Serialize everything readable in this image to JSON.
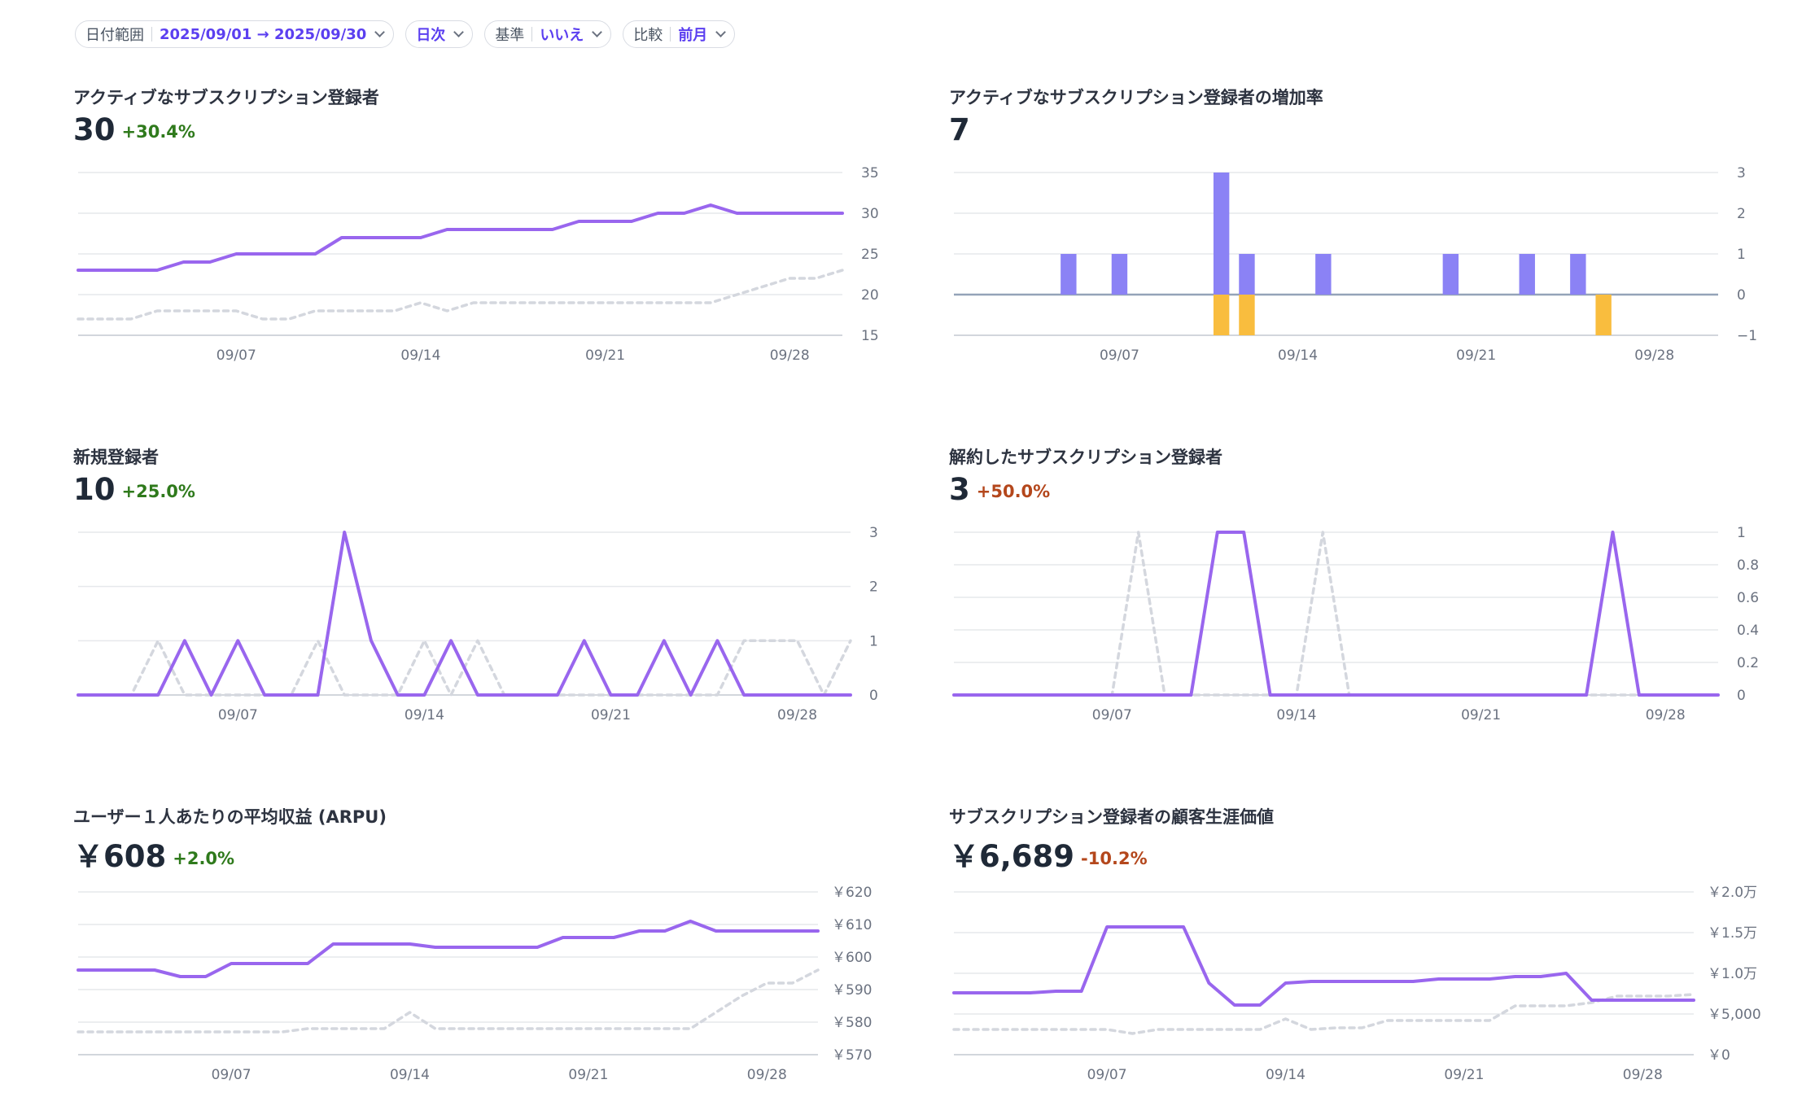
{
  "filters": [
    {
      "label": "日付範囲",
      "value": "2025/09/01 → 2025/09/30"
    },
    {
      "label": "",
      "value": "日次"
    },
    {
      "label": "基準",
      "value": "いいえ"
    },
    {
      "label": "比較",
      "value": "前月"
    }
  ],
  "colors": {
    "primary": "#9966ee",
    "comparison": "#d4d7de",
    "bar_positive": "#8b82f5",
    "bar_negative": "#f9bd3e",
    "increase": "#2f7a1c",
    "decrease": "#b4471c"
  },
  "panels": [
    {
      "title": "アクティブなサブスクリプション登録者",
      "value": "30",
      "change": "+30.4%",
      "change_dir": "pos"
    },
    {
      "title": "アクティブなサブスクリプション登録者の増加率",
      "value": "7",
      "change": "",
      "change_dir": ""
    },
    {
      "title": "新規登録者",
      "value": "10",
      "change": "+25.0%",
      "change_dir": "pos"
    },
    {
      "title": "解約したサブスクリプション登録者",
      "value": "3",
      "change": "+50.0%",
      "change_dir": "neg"
    },
    {
      "title": "ユーザー１人あたりの平均収益 (ARPU)",
      "value": "￥608",
      "change": "+2.0%",
      "change_dir": "pos"
    },
    {
      "title": "サブスクリプション登録者の顧客生涯価値",
      "value": "￥6,689",
      "change": "-10.2%",
      "change_dir": "neg"
    }
  ],
  "chart_data": [
    {
      "type": "line",
      "x": [
        "09/01",
        "09/02",
        "09/03",
        "09/04",
        "09/05",
        "09/06",
        "09/07",
        "09/08",
        "09/09",
        "09/10",
        "09/11",
        "09/12",
        "09/13",
        "09/14",
        "09/15",
        "09/16",
        "09/17",
        "09/18",
        "09/19",
        "09/20",
        "09/21",
        "09/22",
        "09/23",
        "09/24",
        "09/25",
        "09/26",
        "09/27",
        "09/28",
        "09/29",
        "09/30"
      ],
      "x_ticks": [
        "09/07",
        "09/14",
        "09/21",
        "09/28"
      ],
      "ylim": [
        15,
        35
      ],
      "y_ticks": [
        15,
        20,
        25,
        30,
        35
      ],
      "y_tick_labels": [
        "15",
        "20",
        "25",
        "30",
        "35"
      ],
      "series": [
        {
          "role": "current",
          "values": [
            23,
            23,
            23,
            23,
            24,
            24,
            25,
            25,
            25,
            25,
            27,
            27,
            27,
            27,
            28,
            28,
            28,
            28,
            28,
            29,
            29,
            29,
            30,
            30,
            31,
            30,
            30,
            30,
            30,
            30
          ]
        },
        {
          "role": "comparison",
          "values": [
            17,
            17,
            17,
            18,
            18,
            18,
            18,
            17,
            17,
            18,
            18,
            18,
            18,
            19,
            18,
            19,
            19,
            19,
            19,
            19,
            19,
            19,
            19,
            19,
            19,
            20,
            21,
            22,
            22,
            23
          ]
        }
      ]
    },
    {
      "type": "bar",
      "x": [
        "09/01",
        "09/02",
        "09/03",
        "09/04",
        "09/05",
        "09/06",
        "09/07",
        "09/08",
        "09/09",
        "09/10",
        "09/11",
        "09/12",
        "09/13",
        "09/14",
        "09/15",
        "09/16",
        "09/17",
        "09/18",
        "09/19",
        "09/20",
        "09/21",
        "09/22",
        "09/23",
        "09/24",
        "09/25",
        "09/26",
        "09/27",
        "09/28",
        "09/29",
        "09/30"
      ],
      "x_ticks": [
        "09/07",
        "09/14",
        "09/21",
        "09/28"
      ],
      "ylim": [
        -1,
        3
      ],
      "y_ticks": [
        -1,
        0,
        1,
        2,
        3
      ],
      "y_tick_labels": [
        "−1",
        "0",
        "1",
        "2",
        "3"
      ],
      "series": [
        {
          "role": "positive",
          "values": [
            0,
            0,
            0,
            0,
            1,
            0,
            1,
            0,
            0,
            0,
            3,
            1,
            0,
            0,
            1,
            0,
            0,
            0,
            0,
            1,
            0,
            0,
            1,
            0,
            1,
            0,
            0,
            0,
            0,
            0
          ]
        },
        {
          "role": "negative",
          "values": [
            0,
            0,
            0,
            0,
            0,
            0,
            0,
            0,
            0,
            0,
            -1,
            -1,
            0,
            0,
            0,
            0,
            0,
            0,
            0,
            0,
            0,
            0,
            0,
            0,
            0,
            -1,
            0,
            0,
            0,
            0
          ]
        }
      ]
    },
    {
      "type": "line",
      "x": [
        "09/01",
        "09/02",
        "09/03",
        "09/04",
        "09/05",
        "09/06",
        "09/07",
        "09/08",
        "09/09",
        "09/10",
        "09/11",
        "09/12",
        "09/13",
        "09/14",
        "09/15",
        "09/16",
        "09/17",
        "09/18",
        "09/19",
        "09/20",
        "09/21",
        "09/22",
        "09/23",
        "09/24",
        "09/25",
        "09/26",
        "09/27",
        "09/28",
        "09/29",
        "09/30"
      ],
      "x_ticks": [
        "09/07",
        "09/14",
        "09/21",
        "09/28"
      ],
      "ylim": [
        0,
        3
      ],
      "y_ticks": [
        0,
        1,
        2,
        3
      ],
      "y_tick_labels": [
        "0",
        "1",
        "2",
        "3"
      ],
      "series": [
        {
          "role": "current",
          "values": [
            0,
            0,
            0,
            0,
            1,
            0,
            1,
            0,
            0,
            0,
            3,
            1,
            0,
            0,
            1,
            0,
            0,
            0,
            0,
            1,
            0,
            0,
            1,
            0,
            1,
            0,
            0,
            0,
            0,
            0
          ]
        },
        {
          "role": "comparison",
          "values": [
            0,
            0,
            0,
            1,
            0,
            0,
            0,
            0,
            0,
            1,
            0,
            0,
            0,
            1,
            0,
            1,
            0,
            0,
            0,
            0,
            0,
            0,
            0,
            0,
            0,
            1,
            1,
            1,
            0,
            1
          ]
        }
      ]
    },
    {
      "type": "line",
      "x": [
        "09/01",
        "09/02",
        "09/03",
        "09/04",
        "09/05",
        "09/06",
        "09/07",
        "09/08",
        "09/09",
        "09/10",
        "09/11",
        "09/12",
        "09/13",
        "09/14",
        "09/15",
        "09/16",
        "09/17",
        "09/18",
        "09/19",
        "09/20",
        "09/21",
        "09/22",
        "09/23",
        "09/24",
        "09/25",
        "09/26",
        "09/27",
        "09/28",
        "09/29",
        "09/30"
      ],
      "x_ticks": [
        "09/07",
        "09/14",
        "09/21",
        "09/28"
      ],
      "ylim": [
        0,
        1
      ],
      "y_ticks": [
        0,
        0.2,
        0.4,
        0.6,
        0.8,
        1
      ],
      "y_tick_labels": [
        "0",
        "0.2",
        "0.4",
        "0.6",
        "0.8",
        "1"
      ],
      "series": [
        {
          "role": "current",
          "values": [
            0,
            0,
            0,
            0,
            0,
            0,
            0,
            0,
            0,
            0,
            1,
            1,
            0,
            0,
            0,
            0,
            0,
            0,
            0,
            0,
            0,
            0,
            0,
            0,
            0,
            1,
            0,
            0,
            0,
            0
          ]
        },
        {
          "role": "comparison",
          "values": [
            0,
            0,
            0,
            0,
            0,
            0,
            0,
            1,
            0,
            0,
            0,
            0,
            0,
            0,
            1,
            0,
            0,
            0,
            0,
            0,
            0,
            0,
            0,
            0,
            0,
            0,
            0,
            0,
            0,
            0
          ]
        }
      ]
    },
    {
      "type": "line",
      "x": [
        "09/01",
        "09/02",
        "09/03",
        "09/04",
        "09/05",
        "09/06",
        "09/07",
        "09/08",
        "09/09",
        "09/10",
        "09/11",
        "09/12",
        "09/13",
        "09/14",
        "09/15",
        "09/16",
        "09/17",
        "09/18",
        "09/19",
        "09/20",
        "09/21",
        "09/22",
        "09/23",
        "09/24",
        "09/25",
        "09/26",
        "09/27",
        "09/28",
        "09/29",
        "09/30"
      ],
      "x_ticks": [
        "09/07",
        "09/14",
        "09/21",
        "09/28"
      ],
      "ylim": [
        570,
        620
      ],
      "y_ticks": [
        570,
        580,
        590,
        600,
        610,
        620
      ],
      "y_tick_labels": [
        "￥570",
        "￥580",
        "￥590",
        "￥600",
        "￥610",
        "￥620"
      ],
      "series": [
        {
          "role": "current",
          "values": [
            596,
            596,
            596,
            596,
            594,
            594,
            598,
            598,
            598,
            598,
            604,
            604,
            604,
            604,
            603,
            603,
            603,
            603,
            603,
            606,
            606,
            606,
            608,
            608,
            611,
            608,
            608,
            608,
            608,
            608
          ]
        },
        {
          "role": "comparison",
          "values": [
            577,
            577,
            577,
            577,
            577,
            577,
            577,
            577,
            577,
            578,
            578,
            578,
            578,
            583,
            578,
            578,
            578,
            578,
            578,
            578,
            578,
            578,
            578,
            578,
            578,
            583,
            588,
            592,
            592,
            596
          ]
        }
      ]
    },
    {
      "type": "line",
      "x": [
        "09/01",
        "09/02",
        "09/03",
        "09/04",
        "09/05",
        "09/06",
        "09/07",
        "09/08",
        "09/09",
        "09/10",
        "09/11",
        "09/12",
        "09/13",
        "09/14",
        "09/15",
        "09/16",
        "09/17",
        "09/18",
        "09/19",
        "09/20",
        "09/21",
        "09/22",
        "09/23",
        "09/24",
        "09/25",
        "09/26",
        "09/27",
        "09/28",
        "09/29",
        "09/30"
      ],
      "x_ticks": [
        "09/07",
        "09/14",
        "09/21",
        "09/28"
      ],
      "ylim": [
        0,
        20000
      ],
      "y_ticks": [
        0,
        5000,
        10000,
        15000,
        20000
      ],
      "y_tick_labels": [
        "￥0",
        "￥5,000",
        "￥1.0万",
        "￥1.5万",
        "￥2.0万"
      ],
      "series": [
        {
          "role": "current",
          "values": [
            7600,
            7600,
            7600,
            7600,
            7800,
            7800,
            15700,
            15700,
            15700,
            15700,
            8800,
            6100,
            6100,
            8800,
            9000,
            9000,
            9000,
            9000,
            9000,
            9300,
            9300,
            9300,
            9600,
            9600,
            10000,
            6700,
            6700,
            6700,
            6700,
            6700
          ]
        },
        {
          "role": "comparison",
          "values": [
            3100,
            3100,
            3100,
            3100,
            3100,
            3100,
            3100,
            2600,
            3100,
            3100,
            3100,
            3100,
            3100,
            4400,
            3100,
            3300,
            3300,
            4200,
            4200,
            4200,
            4200,
            4200,
            6000,
            6000,
            6000,
            6400,
            7200,
            7200,
            7200,
            7400
          ]
        }
      ]
    }
  ]
}
